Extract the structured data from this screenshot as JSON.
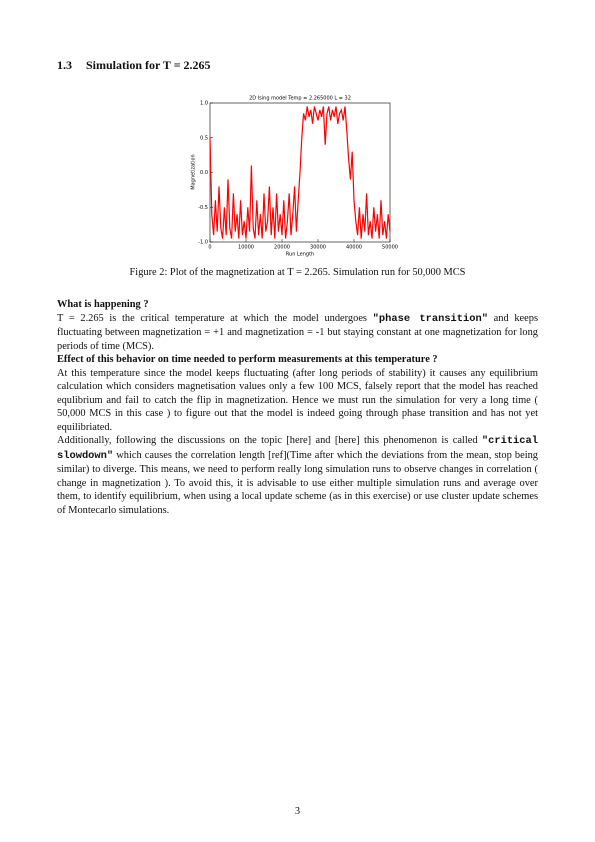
{
  "section": {
    "number": "1.3",
    "title": "Simulation for T = 2.265"
  },
  "figure": {
    "chart_data": {
      "type": "line",
      "title": "2D Ising model Temp = 2.265000 L = 32",
      "xlabel": "Run Length",
      "ylabel": "Magnetization",
      "xlim": [
        0,
        50000
      ],
      "xticks": [
        0,
        10000,
        20000,
        30000,
        40000,
        50000
      ],
      "ylim": [
        -1,
        1
      ],
      "yticks": [
        {
          "value": -1,
          "label": "-1.0"
        },
        {
          "value": -0.5,
          "label": "-0.5"
        },
        {
          "value": 0,
          "label": "0.0"
        },
        {
          "value": 0.5,
          "label": "0.5"
        },
        {
          "value": 1,
          "label": "1.0"
        }
      ],
      "x": [
        0,
        500,
        1000,
        1500,
        2000,
        2500,
        3000,
        3500,
        4000,
        4500,
        5000,
        5500,
        6000,
        6500,
        7000,
        7500,
        8000,
        8500,
        9000,
        9500,
        10000,
        10500,
        11000,
        11500,
        12000,
        12500,
        13000,
        13500,
        14000,
        14500,
        15000,
        15500,
        16000,
        16500,
        17000,
        17500,
        18000,
        18500,
        19000,
        19500,
        20000,
        20500,
        21000,
        21500,
        22000,
        22500,
        23000,
        23500,
        24000,
        24500,
        25000,
        25500,
        26000,
        26500,
        27000,
        27500,
        28000,
        28500,
        29000,
        29500,
        30000,
        30500,
        31000,
        31500,
        32000,
        32500,
        33000,
        33500,
        34000,
        34500,
        35000,
        35500,
        36000,
        36500,
        37000,
        37500,
        38000,
        38500,
        39000,
        39500,
        40000,
        40500,
        41000,
        41500,
        42000,
        42500,
        43000,
        43500,
        44000,
        44500,
        45000,
        45500,
        46000,
        46500,
        47000,
        47500,
        48000,
        48500,
        49000,
        49500,
        50000
      ],
      "series": [
        {
          "color": "#ff0000",
          "values": [
            0.5,
            -0.6,
            -0.9,
            -0.4,
            -0.85,
            -0.2,
            -0.8,
            -0.95,
            -0.5,
            -0.9,
            -0.1,
            -0.8,
            -0.95,
            -0.3,
            -0.85,
            -0.6,
            -0.95,
            -0.4,
            -0.9,
            -0.7,
            -0.95,
            -0.5,
            -0.85,
            0.1,
            -0.8,
            -0.95,
            -0.4,
            -0.9,
            -0.6,
            -0.95,
            -0.3,
            -0.85,
            -0.7,
            -0.2,
            -0.9,
            -0.5,
            -0.95,
            -0.3,
            -0.85,
            -0.6,
            -0.9,
            -0.4,
            -0.95,
            -0.7,
            -0.3,
            -0.9,
            -0.6,
            -0.2,
            -0.85,
            -0.4,
            0.0,
            0.5,
            0.85,
            0.75,
            0.95,
            0.8,
            0.9,
            0.7,
            0.95,
            0.85,
            0.75,
            0.9,
            0.8,
            0.95,
            0.4,
            0.85,
            0.95,
            0.75,
            0.9,
            0.8,
            0.95,
            0.7,
            0.85,
            0.9,
            0.75,
            0.95,
            0.6,
            0.2,
            -0.1,
            0.3,
            -0.4,
            -0.7,
            -0.9,
            -0.5,
            -0.95,
            -0.6,
            -0.85,
            -0.3,
            -0.9,
            -0.7,
            -0.95,
            -0.5,
            -0.85,
            -0.6,
            -0.95,
            -0.4,
            -0.9,
            -0.7,
            -0.95,
            -0.6,
            -0.85
          ]
        }
      ]
    },
    "caption": "Figure 2: Plot of the magnetization at T = 2.265. Simulation run for 50,000 MCS"
  },
  "body": [
    {
      "heading": "What is happening ?",
      "text": [
        "T = 2.265 is the critical temperature at which the model undergoes ",
        "\"phase transition\"",
        " and keeps fluctuating between magnetization = +1 and magnetization = -1 but staying constant at one magnetization for long periods of time (MCS)."
      ]
    },
    {
      "heading": "Effect of this behavior on time needed to perform measurements at this temperature ?",
      "text": [
        "At this temperature since the model keeps fluctuating (after long periods of stability) it causes any equilibrium calculation which considers magnetisation values only a few 100 MCS, falsely report that the model has reached equlibrium and fail to catch the flip in magnetization. Hence we must run the simulation for very a long time (   50,000 MCS in this case ) to figure out that the model is indeed going through phase transition and has not yet equilibriated."
      ]
    },
    {
      "text": [
        "Additionally, following the discussions on the topic [here] and [here] this phenomenon is called ",
        "\"critical slowdown\"",
        " which causes the correlation length [ref](Time after which the deviations from the mean, stop being similar) to diverge. This means, we need to perform really long simulation runs to observe changes in correlation ( change in magnetization ). To avoid this, it is advisable to use either multiple simulation runs and average over them, to identify equilibrium, when using a local update scheme (as in this exercise) or use cluster update schemes of Montecarlo simulations."
      ]
    }
  ],
  "page_number": "3"
}
